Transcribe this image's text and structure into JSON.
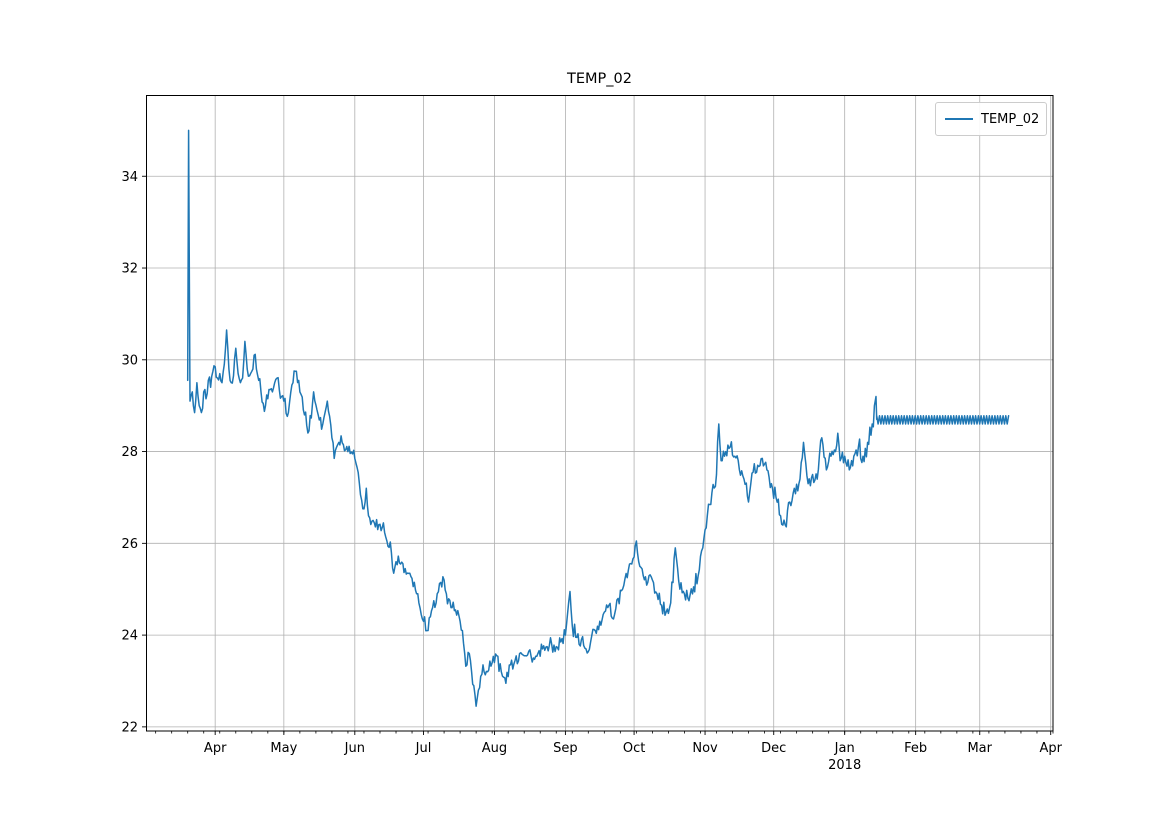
{
  "chart_data": {
    "type": "line",
    "title": "TEMP_02",
    "legend": {
      "label": "TEMP_02",
      "position": "upper right"
    },
    "line_color": "#1f77b4",
    "grid": true,
    "grid_color": "#b0b0b0",
    "background": "#ffffff",
    "x_axis": {
      "day_zero": "2017-03-20",
      "xlim": [
        -18,
        378
      ],
      "minor_tick_every_days": 7,
      "major_ticks": [
        {
          "day": 12,
          "label": "Apr"
        },
        {
          "day": 42,
          "label": "May"
        },
        {
          "day": 73,
          "label": "Jun"
        },
        {
          "day": 103,
          "label": "Jul"
        },
        {
          "day": 134,
          "label": "Aug"
        },
        {
          "day": 165,
          "label": "Sep"
        },
        {
          "day": 195,
          "label": "Oct"
        },
        {
          "day": 226,
          "label": "Nov"
        },
        {
          "day": 256,
          "label": "Dec"
        },
        {
          "day": 287,
          "label": "Jan",
          "sublabel": "2018"
        },
        {
          "day": 318,
          "label": "Feb"
        },
        {
          "day": 346,
          "label": "Mar"
        },
        {
          "day": 377,
          "label": "Apr"
        }
      ]
    },
    "y_axis": {
      "ylim": [
        21.91,
        35.76
      ],
      "ticks": [
        22,
        24,
        26,
        28,
        30,
        32,
        34
      ]
    },
    "series": [
      {
        "name": "TEMP_02",
        "default_noise": 0.17,
        "points": [
          [
            0,
            29.55,
            0.05
          ],
          [
            0.4,
            35.0,
            0.02
          ],
          [
            1,
            29.1,
            0.1
          ],
          [
            2,
            29.3
          ],
          [
            3,
            28.85
          ],
          [
            4,
            29.5
          ],
          [
            5,
            29.0
          ],
          [
            6,
            28.85
          ],
          [
            7,
            29.3
          ],
          [
            8,
            29.15
          ],
          [
            9,
            29.55
          ],
          [
            10,
            29.4
          ],
          [
            11,
            29.75
          ],
          [
            12,
            29.85
          ],
          [
            13,
            29.6
          ],
          [
            14,
            29.7
          ],
          [
            15,
            29.5
          ],
          [
            16,
            29.9
          ],
          [
            17,
            30.65,
            0.05
          ],
          [
            18,
            29.8
          ],
          [
            19,
            29.5
          ],
          [
            20,
            29.65
          ],
          [
            21,
            30.25,
            0.05
          ],
          [
            22,
            29.7
          ],
          [
            23,
            29.5
          ],
          [
            24,
            29.6
          ],
          [
            25,
            30.4,
            0.05
          ],
          [
            26,
            29.8
          ],
          [
            27,
            29.65
          ],
          [
            28,
            29.75
          ],
          [
            29,
            30.1
          ],
          [
            30,
            29.8
          ],
          [
            31,
            29.55
          ],
          [
            32,
            29.3
          ],
          [
            33,
            29.05
          ],
          [
            34,
            29.0
          ],
          [
            35,
            29.15
          ],
          [
            36,
            29.35
          ],
          [
            37,
            29.3
          ],
          [
            38,
            29.5
          ],
          [
            39,
            29.6
          ],
          [
            40,
            29.35
          ],
          [
            41,
            29.2
          ],
          [
            42,
            29.1
          ],
          [
            44,
            28.85
          ],
          [
            46,
            29.5
          ],
          [
            47,
            29.75
          ],
          [
            49,
            29.3
          ],
          [
            51,
            28.8
          ],
          [
            53,
            28.45
          ],
          [
            55,
            29.3,
            0.08
          ],
          [
            57,
            28.8
          ],
          [
            59,
            28.6
          ],
          [
            61,
            29.1,
            0.08
          ],
          [
            63,
            28.3
          ],
          [
            64,
            27.85
          ],
          [
            66,
            28.2
          ],
          [
            68,
            28.15
          ],
          [
            70,
            28.0
          ],
          [
            72,
            27.95
          ],
          [
            73,
            27.85
          ],
          [
            75,
            27.3
          ],
          [
            77,
            26.75
          ],
          [
            78,
            27.2,
            0.08
          ],
          [
            79,
            26.6
          ],
          [
            81,
            26.5
          ],
          [
            83,
            26.3
          ],
          [
            85,
            26.35
          ],
          [
            87,
            26.05
          ],
          [
            89,
            25.8
          ],
          [
            90,
            25.35,
            0.08
          ],
          [
            91,
            25.6
          ],
          [
            93,
            25.55
          ],
          [
            95,
            25.45
          ],
          [
            97,
            25.35
          ],
          [
            99,
            25.15
          ],
          [
            100,
            24.9
          ],
          [
            101,
            24.7
          ],
          [
            103,
            24.3
          ],
          [
            105,
            24.1
          ],
          [
            107,
            24.6
          ],
          [
            109,
            24.9
          ],
          [
            111,
            25.05
          ],
          [
            112,
            25.2,
            0.08
          ],
          [
            113,
            24.9
          ],
          [
            115,
            24.6
          ],
          [
            117,
            24.55
          ],
          [
            119,
            24.3
          ],
          [
            120,
            24.1
          ],
          [
            121,
            23.6
          ],
          [
            122,
            23.35
          ],
          [
            123,
            23.6
          ],
          [
            124,
            23.2
          ],
          [
            125,
            22.9
          ],
          [
            126,
            22.45,
            0.05
          ],
          [
            127,
            22.8
          ],
          [
            128,
            23.1
          ],
          [
            129,
            23.35
          ],
          [
            131,
            23.2
          ],
          [
            133,
            23.4
          ],
          [
            135,
            23.55
          ],
          [
            137,
            23.2
          ],
          [
            139,
            22.95
          ],
          [
            141,
            23.35
          ],
          [
            143,
            23.45
          ],
          [
            145,
            23.6
          ],
          [
            147,
            23.55
          ],
          [
            149,
            23.65
          ],
          [
            151,
            23.5
          ],
          [
            153,
            23.6
          ],
          [
            155,
            23.7
          ],
          [
            157,
            23.75
          ],
          [
            159,
            23.8
          ],
          [
            161,
            23.75
          ],
          [
            163,
            23.85
          ],
          [
            165,
            24.0
          ],
          [
            166,
            24.5,
            0.08
          ],
          [
            167,
            24.95,
            0.05
          ],
          [
            168,
            24.2
          ],
          [
            170,
            23.95
          ],
          [
            172,
            23.9
          ],
          [
            174,
            23.7
          ],
          [
            176,
            23.85
          ],
          [
            178,
            24.1
          ],
          [
            180,
            24.3
          ],
          [
            182,
            24.5
          ],
          [
            184,
            24.65
          ],
          [
            186,
            24.35
          ],
          [
            188,
            24.8
          ],
          [
            190,
            25.0
          ],
          [
            192,
            25.25
          ],
          [
            194,
            25.55
          ],
          [
            195,
            25.7
          ],
          [
            196,
            26.05,
            0.05
          ],
          [
            197,
            25.6
          ],
          [
            199,
            25.3
          ],
          [
            201,
            25.15
          ],
          [
            203,
            25.2
          ],
          [
            205,
            24.9
          ],
          [
            207,
            24.65
          ],
          [
            209,
            24.5
          ],
          [
            211,
            24.7
          ],
          [
            213,
            25.9,
            0.05
          ],
          [
            215,
            25.0
          ],
          [
            217,
            24.9
          ],
          [
            219,
            24.75
          ],
          [
            221,
            25.05
          ],
          [
            223,
            25.3
          ],
          [
            225,
            25.9
          ],
          [
            226,
            26.3
          ],
          [
            227,
            26.6
          ],
          [
            229,
            27.1
          ],
          [
            231,
            27.5
          ],
          [
            232,
            28.6,
            0.05
          ],
          [
            233,
            27.8
          ],
          [
            235,
            28.0
          ],
          [
            237,
            28.1
          ],
          [
            239,
            27.9
          ],
          [
            241,
            27.6
          ],
          [
            243,
            27.4
          ],
          [
            245,
            26.9,
            0.1
          ],
          [
            246,
            27.3
          ],
          [
            247,
            27.55
          ],
          [
            249,
            27.7
          ],
          [
            251,
            27.85
          ],
          [
            253,
            27.6
          ],
          [
            255,
            27.3
          ],
          [
            257,
            27.0
          ],
          [
            259,
            26.6
          ],
          [
            261,
            26.4
          ],
          [
            263,
            26.9
          ],
          [
            265,
            27.2
          ],
          [
            267,
            27.3
          ],
          [
            269,
            28.2,
            0.08
          ],
          [
            271,
            27.3
          ],
          [
            273,
            27.5
          ],
          [
            275,
            27.4
          ],
          [
            277,
            28.3,
            0.08
          ],
          [
            279,
            27.6
          ],
          [
            281,
            27.9
          ],
          [
            283,
            28.0
          ],
          [
            284,
            28.4,
            0.08
          ],
          [
            285,
            27.8
          ],
          [
            287,
            27.9
          ],
          [
            289,
            27.6
          ],
          [
            291,
            27.9
          ],
          [
            293,
            28.1,
            0.3
          ],
          [
            295,
            27.9,
            0.3
          ],
          [
            297,
            28.2,
            0.3
          ],
          [
            299,
            28.6,
            0.3
          ],
          [
            300,
            29.0,
            0.15
          ],
          [
            300.7,
            29.2,
            0.05
          ],
          [
            301,
            28.7,
            0.02
          ]
        ],
        "flat_band": {
          "start_day": 301,
          "end_day": 359,
          "high": 28.78,
          "low": 28.6,
          "period_days": 1.2
        }
      }
    ]
  }
}
